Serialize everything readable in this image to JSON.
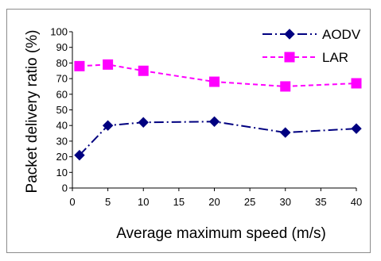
{
  "chart_data": {
    "type": "line",
    "title": "",
    "xlabel": "Average maximum speed (m/s)",
    "ylabel": "Packet delivery ratio (%)",
    "xlim": [
      0,
      40
    ],
    "ylim": [
      0,
      100
    ],
    "x_ticks": [
      0,
      5,
      10,
      15,
      20,
      25,
      30,
      35,
      40
    ],
    "y_ticks": [
      0,
      10,
      20,
      30,
      40,
      50,
      60,
      70,
      80,
      90,
      100
    ],
    "grid": false,
    "legend_position": "top-right",
    "series": [
      {
        "name": "AODV",
        "x": [
          1,
          5,
          10,
          20,
          30,
          40
        ],
        "values": [
          21,
          40,
          42,
          42.5,
          35.5,
          38
        ],
        "color": "#000080",
        "line_style": "dash-dot",
        "marker": "diamond"
      },
      {
        "name": "LAR",
        "x": [
          1,
          5,
          10,
          20,
          30,
          40
        ],
        "values": [
          78,
          79,
          75,
          68,
          65,
          67
        ],
        "color": "#ff00ff",
        "line_style": "dashed",
        "marker": "square"
      }
    ]
  }
}
